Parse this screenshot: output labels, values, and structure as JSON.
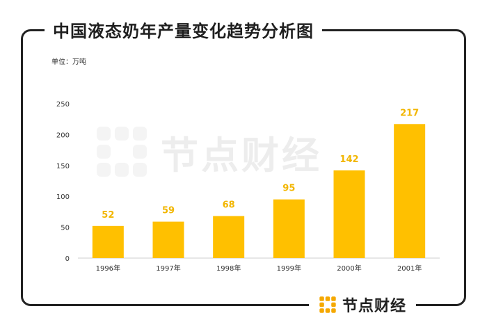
{
  "title": "中国液态奶年产量变化趋势分析图",
  "unit_label": "单位：万吨",
  "brand": {
    "name": "节点财经",
    "accent": "#FFC000",
    "logo_color": "#F5A800"
  },
  "chart_data": {
    "type": "bar",
    "categories": [
      "1996年",
      "1997年",
      "1998年",
      "1999年",
      "2000年",
      "2001年"
    ],
    "values": [
      52,
      59,
      68,
      95,
      142,
      217
    ],
    "ylim": [
      0,
      250
    ],
    "yticks": [
      0,
      50,
      100,
      150,
      200,
      250
    ],
    "bar_color": "#FFC000",
    "label_color": "#F2B600",
    "grid": false,
    "legend": "none"
  }
}
